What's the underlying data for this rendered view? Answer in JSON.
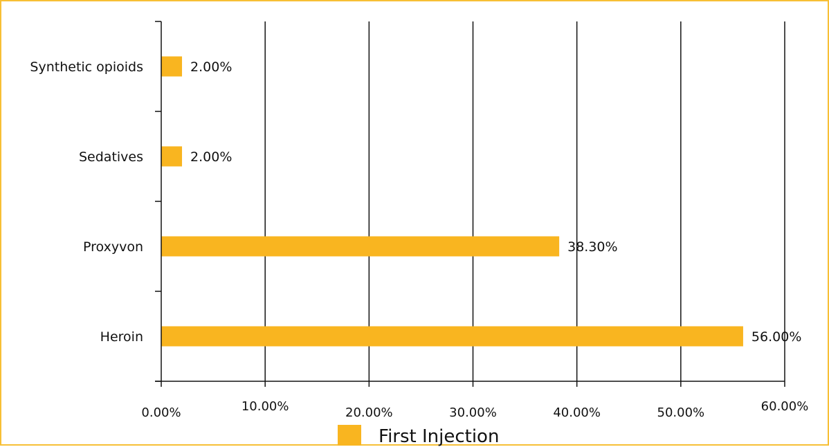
{
  "chart_data": {
    "type": "bar",
    "orientation": "horizontal",
    "categories": [
      "Heroin",
      "Proxyvon",
      "Sedatives",
      "Synthetic opioids"
    ],
    "series": [
      {
        "name": "First Injection",
        "values": [
          56.0,
          38.3,
          2.0,
          2.0
        ],
        "labels": [
          "56.00%",
          "38.30%",
          "2.00%",
          "2.00%"
        ],
        "color": "#f9b520"
      }
    ],
    "xlim": [
      0,
      60
    ],
    "x_ticks": [
      0,
      10,
      20,
      30,
      40,
      50,
      60
    ],
    "x_tick_labels": [
      "0.00%",
      "10.00%",
      "20.00%",
      "30.00%",
      "40.00%",
      "50.00%",
      "60.00%"
    ],
    "grid": "vertical",
    "legend_position": "bottom",
    "border_color": "#f7bf35",
    "title": "",
    "xlabel": "",
    "ylabel": ""
  }
}
